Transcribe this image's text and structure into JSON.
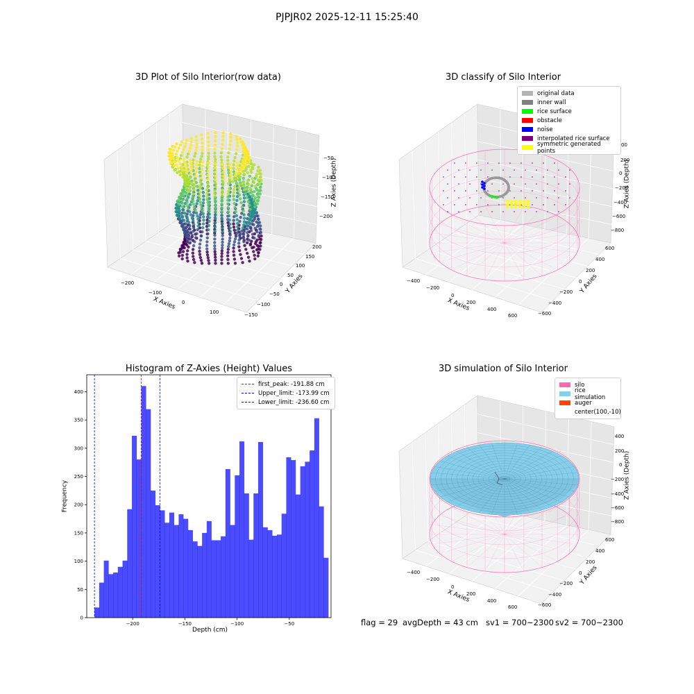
{
  "suptitle": "PJPJR02 2025-12-11 15:25:40",
  "panels": {
    "raw": {
      "title": "3D Plot of Silo Interior(row data)",
      "xlabel": "X Axies",
      "ylabel": "Y Axies",
      "zlabel": "Z Axies (Depth)",
      "xticks": [
        "−200",
        "−100",
        "0",
        "100"
      ],
      "yticks": [
        "200",
        "150",
        "100",
        "50",
        "0",
        "−50",
        "−100",
        "−150"
      ],
      "zticks": [
        "−50",
        "−100",
        "−150",
        "−200"
      ]
    },
    "classify": {
      "title": "3D classify of Silo Interior",
      "xlabel": "X Axies",
      "ylabel": "Y Axies",
      "zlabel": "Z Axies (Depth)",
      "xticks": [
        "−400",
        "−200",
        "0",
        "200",
        "400",
        "600"
      ],
      "yticks": [
        "600",
        "400",
        "200",
        "0",
        "−200",
        "−400",
        "−600"
      ],
      "zticks": [
        "200",
        "0",
        "−200",
        "−400",
        "−600",
        "−800"
      ],
      "zticks_partial": "00",
      "legend": [
        {
          "label": "original data",
          "color": "#b4b4b4"
        },
        {
          "label": "inner wall",
          "color": "#808080"
        },
        {
          "label": "rice surface",
          "color": "#00ff00"
        },
        {
          "label": "obstacle",
          "color": "#ff0000"
        },
        {
          "label": "noise",
          "color": "#0000ff"
        },
        {
          "label": "interpolated rice surface",
          "color": "#800080"
        },
        {
          "label": "symmetric generated points",
          "color": "#ffff00"
        }
      ]
    },
    "simulation": {
      "title": "3D simulation of Silo Interior",
      "xlabel": "X Axies",
      "ylabel": "Y Axies",
      "zlabel": "Z Axies (Depth)",
      "xticks": [
        "−400",
        "−200",
        "0",
        "200",
        "400",
        "600"
      ],
      "yticks": [
        "600",
        "400",
        "200",
        "0",
        "−200",
        "−400",
        "−600"
      ],
      "zticks": [
        "400",
        "200",
        "0",
        "−200",
        "−400",
        "−600",
        "−800"
      ],
      "legend": [
        {
          "label": "silo",
          "color": "#ff69b4"
        },
        {
          "label": "rice simulation",
          "color": "#87ceeb"
        },
        {
          "label": "auger",
          "color": "#ff4500"
        },
        {
          "label": "center(100,-10)",
          "color": ""
        }
      ]
    }
  },
  "chart_data": {
    "type": "bar",
    "title": "Histogram of Z-Axies (Height) Values",
    "xlabel": "Depth (cm)",
    "ylabel": "Frequency",
    "xlim": [
      -244,
      -10
    ],
    "ylim": [
      0,
      430
    ],
    "xticks": [
      -200,
      -150,
      -100,
      -50
    ],
    "yticks": [
      0,
      50,
      100,
      150,
      200,
      250,
      300,
      350,
      400
    ],
    "bin_start": -236.6,
    "bin_width": 4.48,
    "values": [
      18,
      62,
      101,
      77,
      80,
      90,
      101,
      192,
      322,
      280,
      410,
      369,
      225,
      199,
      190,
      168,
      186,
      164,
      183,
      175,
      155,
      135,
      127,
      150,
      171,
      137,
      137,
      144,
      263,
      164,
      252,
      312,
      220,
      138,
      220,
      311,
      160,
      155,
      145,
      147,
      184,
      284,
      279,
      218,
      268,
      276,
      296,
      353,
      197,
      106
    ],
    "bar_color": "#0000ff",
    "lines": [
      {
        "label": "first_peak: -191.88 cm",
        "x": -191.88,
        "color": "#ff0000"
      },
      {
        "label": "Upper_limit: -173.99 cm",
        "x": -173.99,
        "color": "#0000ff"
      },
      {
        "label": "Lower_limit: -236.60 cm",
        "x": -236.6,
        "color": "#0000ff"
      }
    ],
    "legend_position": "top-right"
  },
  "footer": {
    "flag": "flag = 29",
    "avg": "avgDepth = 43 cm",
    "sv1": "sv1 = 700~2300",
    "sv2": "sv2 = 700~2300"
  }
}
